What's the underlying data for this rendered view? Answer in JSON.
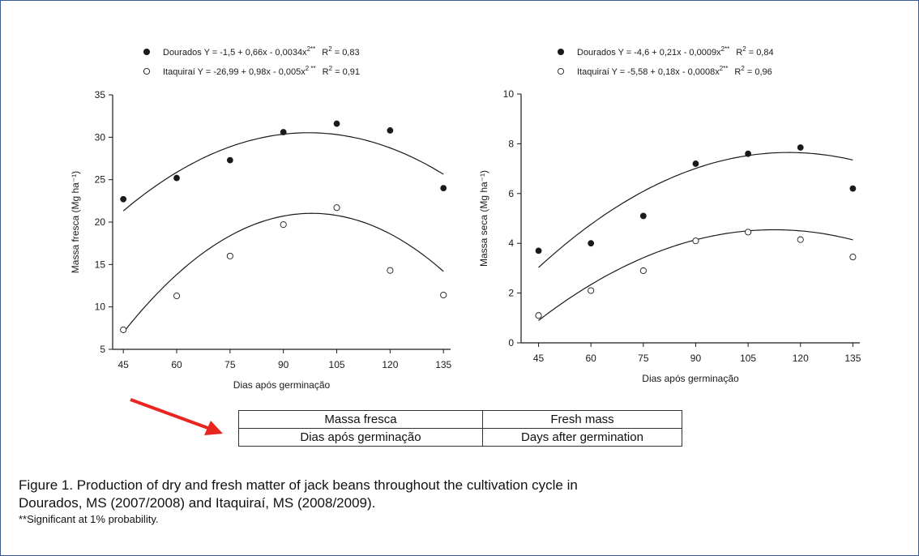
{
  "chart_data": [
    {
      "type": "scatter",
      "ylabel": "Massa fresca (Mg ha⁻¹)",
      "xlabel": "Dias após germinação",
      "x": [
        45,
        60,
        75,
        90,
        105,
        120,
        135
      ],
      "xticks": [
        "45",
        "60",
        "75",
        "90",
        "105",
        "120",
        "135"
      ],
      "xlim": [
        42,
        137
      ],
      "ylim": [
        5,
        35
      ],
      "yticks": [
        "5",
        "10",
        "15",
        "20",
        "25",
        "30",
        "35"
      ],
      "legend_position": "top",
      "series": [
        {
          "name": "Dourados",
          "marker": "filled-circle",
          "values": [
            22.7,
            25.2,
            27.3,
            30.6,
            31.6,
            30.8,
            24.0
          ],
          "equation": "Y = -1,5 + 0,66x - 0,0034x",
          "equation_sup": "2**",
          "r2_label": "R",
          "r2_sup": "2",
          "r2_value": " = 0,83",
          "fit": [
            -1.5,
            0.66,
            -0.0034
          ]
        },
        {
          "name": "Itaquiraí",
          "marker": "open-circle",
          "values": [
            7.3,
            11.3,
            16.0,
            19.7,
            21.7,
            14.3,
            11.4
          ],
          "equation": "Y = -26,99 + 0,98x - 0,005x",
          "equation_sup": "2 **",
          "r2_label": "R",
          "r2_sup": "2",
          "r2_value": " = 0,91",
          "fit": [
            -26.99,
            0.98,
            -0.005
          ]
        }
      ]
    },
    {
      "type": "scatter",
      "ylabel": "Massa seca (Mg ha⁻¹)",
      "xlabel": "Dias após germinação",
      "x": [
        45,
        60,
        75,
        90,
        105,
        120,
        135
      ],
      "xticks": [
        "45",
        "60",
        "75",
        "90",
        "105",
        "120",
        "135"
      ],
      "xlim": [
        40,
        137
      ],
      "ylim": [
        0,
        10
      ],
      "yticks": [
        "0",
        "2",
        "4",
        "6",
        "8",
        "10"
      ],
      "legend_position": "top",
      "series": [
        {
          "name": "Dourados",
          "marker": "filled-circle",
          "values": [
            3.7,
            4.0,
            5.1,
            7.2,
            7.6,
            7.85,
            6.2
          ],
          "equation": "Y = -4,6 + 0,21x - 0,0009x",
          "equation_sup": "2**",
          "r2_label": "R",
          "r2_sup": "2",
          "r2_value": " = 0,84",
          "fit": [
            -4.6,
            0.21,
            -0.0009
          ]
        },
        {
          "name": "Itaquiraí",
          "marker": "open-circle",
          "values": [
            1.1,
            2.1,
            2.9,
            4.1,
            4.45,
            4.15,
            3.45
          ],
          "equation": "Y = -5,58 + 0,18x - 0,0008x",
          "equation_sup": "2**",
          "r2_label": "R",
          "r2_sup": "2",
          "r2_value": " = 0,96",
          "fit": [
            -5.58,
            0.18,
            -0.0008
          ]
        }
      ]
    }
  ],
  "translation_table": {
    "rows": [
      [
        "Massa fresca",
        "Fresh mass"
      ],
      [
        "Dias após germinação",
        "Days after germination"
      ]
    ]
  },
  "caption": {
    "line1": "Figure 1. Production of dry and fresh matter of jack beans throughout the cultivation cycle in",
    "line2": "Dourados, MS (2007/2008) and Itaquiraí, MS (2008/2009).",
    "note": "**Significant at 1% probability."
  },
  "colors": {
    "arrow": "#e8251f",
    "ink": "#1a1a1a",
    "frame": "#3b5998"
  }
}
